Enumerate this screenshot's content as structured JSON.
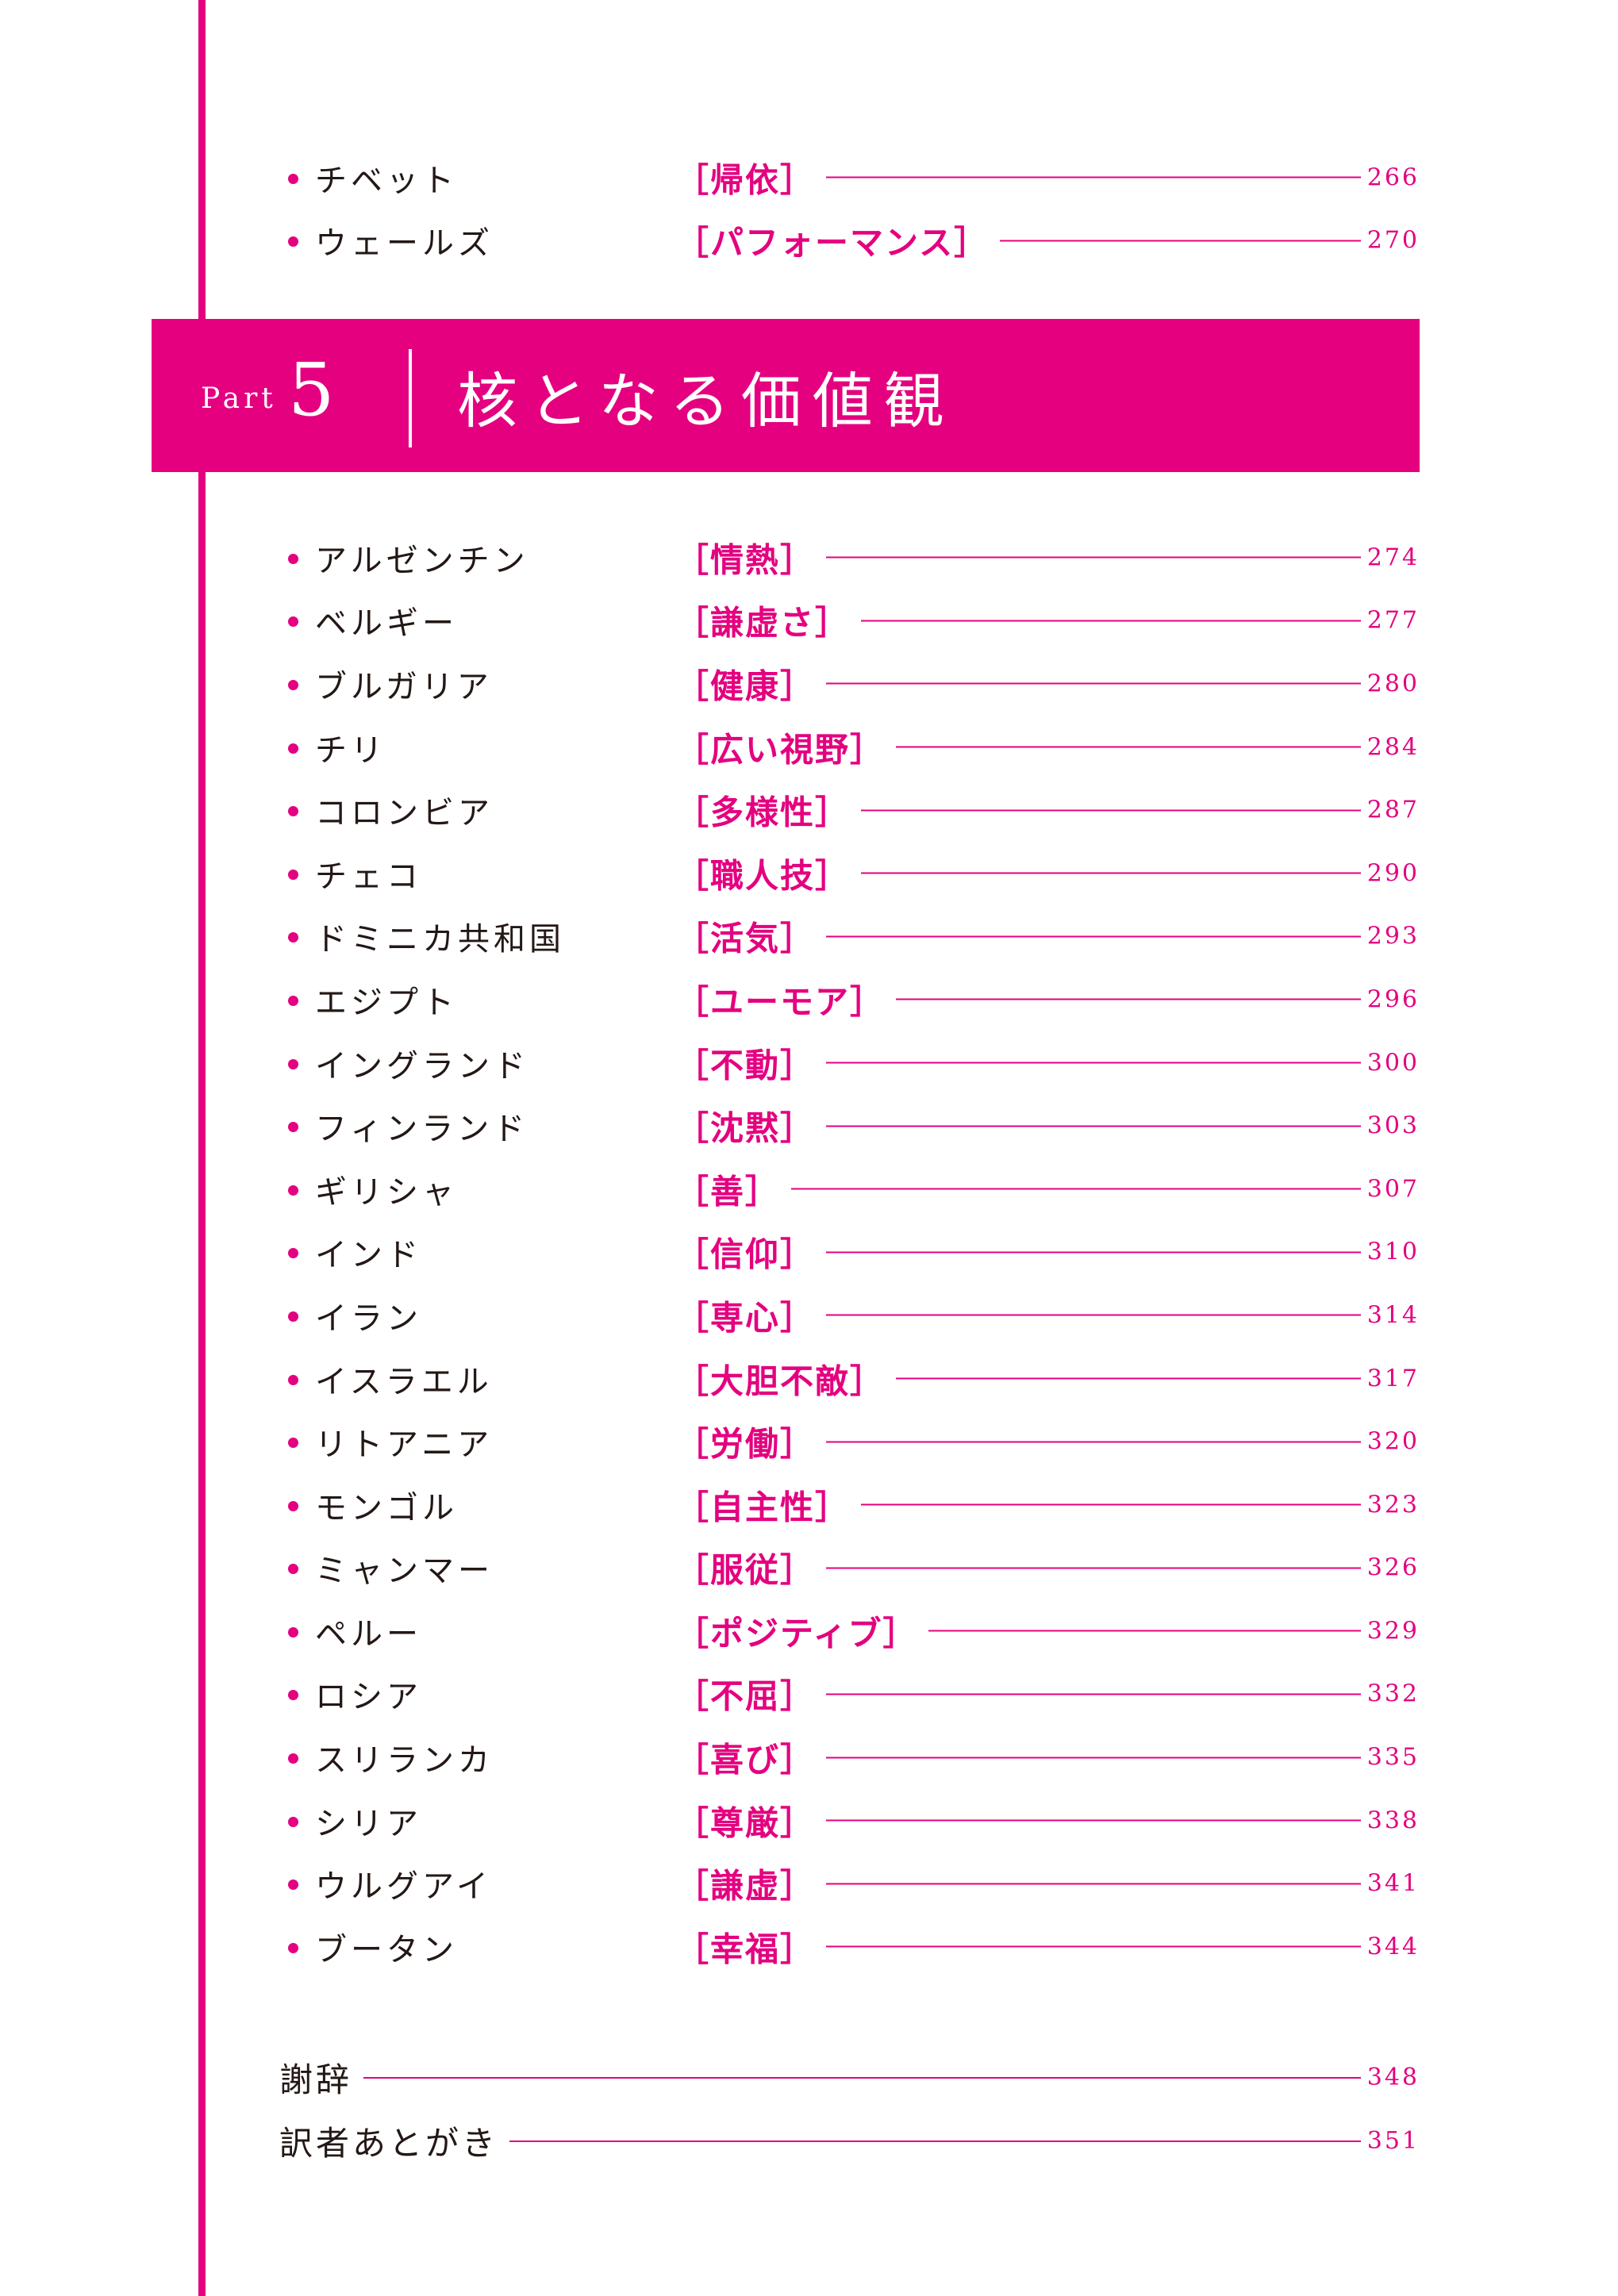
{
  "accent_color": "#e4007f",
  "top_entries": [
    {
      "country": "チベット",
      "value": "［帰依］",
      "page": "266"
    },
    {
      "country": "ウェールズ",
      "value": "［パフォーマンス］",
      "page": "270"
    }
  ],
  "section": {
    "part_label": "Part",
    "part_number": "5",
    "title": "核となる価値観"
  },
  "entries": [
    {
      "country": "アルゼンチン",
      "value": "［情熱］",
      "page": "274"
    },
    {
      "country": "ベルギー",
      "value": "［謙虚さ］",
      "page": "277"
    },
    {
      "country": "ブルガリア",
      "value": "［健康］",
      "page": "280"
    },
    {
      "country": "チリ",
      "value": "［広い視野］",
      "page": "284"
    },
    {
      "country": "コロンビア",
      "value": "［多様性］",
      "page": "287"
    },
    {
      "country": "チェコ",
      "value": "［職人技］",
      "page": "290"
    },
    {
      "country": "ドミニカ共和国",
      "value": "［活気］",
      "page": "293"
    },
    {
      "country": "エジプト",
      "value": "［ユーモア］",
      "page": "296"
    },
    {
      "country": "イングランド",
      "value": "［不動］",
      "page": "300"
    },
    {
      "country": "フィンランド",
      "value": "［沈黙］",
      "page": "303"
    },
    {
      "country": "ギリシャ",
      "value": "［善］",
      "page": "307"
    },
    {
      "country": "インド",
      "value": "［信仰］",
      "page": "310"
    },
    {
      "country": "イラン",
      "value": "［専心］",
      "page": "314"
    },
    {
      "country": "イスラエル",
      "value": "［大胆不敵］",
      "page": "317"
    },
    {
      "country": "リトアニア",
      "value": "［労働］",
      "page": "320"
    },
    {
      "country": "モンゴル",
      "value": "［自主性］",
      "page": "323"
    },
    {
      "country": "ミャンマー",
      "value": "［服従］",
      "page": "326"
    },
    {
      "country": "ペルー",
      "value": "［ポジティブ］",
      "page": "329"
    },
    {
      "country": "ロシア",
      "value": "［不屈］",
      "page": "332"
    },
    {
      "country": "スリランカ",
      "value": "［喜び］",
      "page": "335"
    },
    {
      "country": "シリア",
      "value": "［尊厳］",
      "page": "338"
    },
    {
      "country": "ウルグアイ",
      "value": "［謙虚］",
      "page": "341"
    },
    {
      "country": "ブータン",
      "value": "［幸福］",
      "page": "344"
    }
  ],
  "back_matter": [
    {
      "label": "謝辞",
      "page": "348"
    },
    {
      "label": "訳者あとがき",
      "page": "351"
    }
  ]
}
